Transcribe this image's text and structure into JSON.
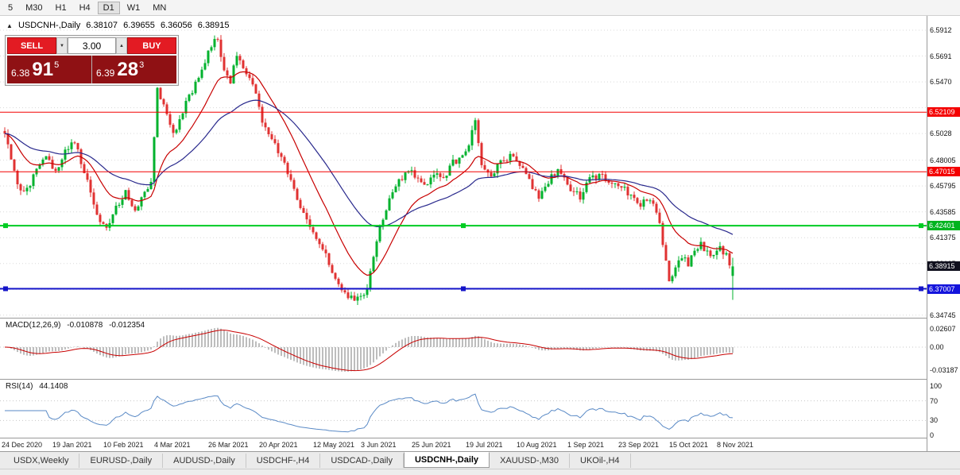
{
  "toolbar": {
    "timeframes": [
      {
        "label": "5",
        "active": false
      },
      {
        "label": "M30",
        "active": false
      },
      {
        "label": "H1",
        "active": false
      },
      {
        "label": "H4",
        "active": false
      },
      {
        "label": "D1",
        "active": true
      },
      {
        "label": "W1",
        "active": false
      },
      {
        "label": "MN",
        "active": false
      }
    ]
  },
  "icons": {
    "collapse": "▲",
    "spinner_down": "▼",
    "spinner_up": "▲"
  },
  "chart": {
    "title": {
      "symbol": "USDCNH-,Daily",
      "open": "6.38107",
      "high": "6.39655",
      "low": "6.36056",
      "close": "6.38915"
    },
    "trade_panel": {
      "sell_label": "SELL",
      "buy_label": "BUY",
      "volume": "3.00",
      "sell_price": {
        "prefix": "6.38",
        "big": "91",
        "sup": "5"
      },
      "buy_price": {
        "prefix": "6.39",
        "big": "28",
        "sup": "3"
      }
    }
  },
  "ui_colors": {
    "buy_sell_button": "#e31b23",
    "price_display_bg": "#8f1114",
    "badge_dark": "#10101e"
  },
  "chart_data": {
    "type": "candlestick",
    "symbol": "USDCNH-,Daily",
    "candle_count": 230,
    "last_candle": {
      "open": 6.38107,
      "high": 6.39655,
      "low": 6.36056,
      "close": 6.38915
    },
    "waypoints": [
      [
        0,
        6.505
      ],
      [
        2,
        6.478
      ],
      [
        4,
        6.46
      ],
      [
        6,
        6.452
      ],
      [
        8,
        6.46
      ],
      [
        10,
        6.47
      ],
      [
        13,
        6.482
      ],
      [
        16,
        6.47
      ],
      [
        19,
        6.49
      ],
      [
        22,
        6.496
      ],
      [
        25,
        6.47
      ],
      [
        28,
        6.442
      ],
      [
        30,
        6.428
      ],
      [
        32,
        6.42
      ],
      [
        35,
        6.44
      ],
      [
        38,
        6.452
      ],
      [
        41,
        6.436
      ],
      [
        44,
        6.452
      ],
      [
        46,
        6.464
      ],
      [
        48,
        6.54
      ],
      [
        50,
        6.526
      ],
      [
        53,
        6.502
      ],
      [
        56,
        6.522
      ],
      [
        60,
        6.546
      ],
      [
        63,
        6.564
      ],
      [
        65,
        6.578
      ],
      [
        67,
        6.584
      ],
      [
        69,
        6.556
      ],
      [
        71,
        6.548
      ],
      [
        73,
        6.57
      ],
      [
        76,
        6.552
      ],
      [
        79,
        6.538
      ],
      [
        81,
        6.515
      ],
      [
        84,
        6.498
      ],
      [
        87,
        6.482
      ],
      [
        90,
        6.464
      ],
      [
        93,
        6.44
      ],
      [
        96,
        6.424
      ],
      [
        98,
        6.412
      ],
      [
        101,
        6.398
      ],
      [
        104,
        6.38
      ],
      [
        107,
        6.366
      ],
      [
        110,
        6.359
      ],
      [
        113,
        6.363
      ],
      [
        115,
        6.382
      ],
      [
        118,
        6.422
      ],
      [
        121,
        6.448
      ],
      [
        124,
        6.462
      ],
      [
        127,
        6.472
      ],
      [
        129,
        6.468
      ],
      [
        132,
        6.458
      ],
      [
        135,
        6.47
      ],
      [
        138,
        6.464
      ],
      [
        141,
        6.478
      ],
      [
        144,
        6.482
      ],
      [
        146,
        6.492
      ],
      [
        148,
        6.516
      ],
      [
        150,
        6.477
      ],
      [
        153,
        6.466
      ],
      [
        156,
        6.478
      ],
      [
        159,
        6.483
      ],
      [
        162,
        6.478
      ],
      [
        165,
        6.462
      ],
      [
        168,
        6.448
      ],
      [
        171,
        6.462
      ],
      [
        174,
        6.473
      ],
      [
        178,
        6.455
      ],
      [
        181,
        6.448
      ],
      [
        184,
        6.463
      ],
      [
        187,
        6.468
      ],
      [
        190,
        6.462
      ],
      [
        194,
        6.458
      ],
      [
        197,
        6.448
      ],
      [
        200,
        6.443
      ],
      [
        203,
        6.448
      ],
      [
        205,
        6.438
      ],
      [
        207,
        6.41
      ],
      [
        209,
        6.378
      ],
      [
        211,
        6.386
      ],
      [
        213,
        6.398
      ],
      [
        215,
        6.392
      ],
      [
        217,
        6.401
      ],
      [
        219,
        6.408
      ],
      [
        221,
        6.4
      ],
      [
        223,
        6.396
      ],
      [
        225,
        6.404
      ],
      [
        227,
        6.398
      ],
      [
        228,
        6.39
      ],
      [
        229,
        6.38915
      ]
    ],
    "price_axis": {
      "ticks": [
        {
          "label": "6.5912",
          "price": 6.5912
        },
        {
          "label": "6.5691",
          "price": 6.5691
        },
        {
          "label": "6.5470",
          "price": 6.547
        },
        {
          "label": "",
          "price": 6.5249
        },
        {
          "label": "6.5028",
          "price": 6.5028
        },
        {
          "label": "6.48005",
          "price": 6.48005
        },
        {
          "label": "6.45795",
          "price": 6.45795
        },
        {
          "label": "6.43585",
          "price": 6.43585
        },
        {
          "label": "6.41375",
          "price": 6.41375
        },
        {
          "label": "6.39165",
          "price": 6.39165
        },
        {
          "label": "",
          "price": 6.36955
        },
        {
          "label": "6.34745",
          "price": 6.34745
        }
      ],
      "badges": [
        {
          "label": "6.52109",
          "price": 6.52109,
          "bg": "#f40000"
        },
        {
          "label": "6.47015",
          "price": 6.47015,
          "bg": "#f40000"
        },
        {
          "label": "6.42401",
          "price": 6.42401,
          "bg": "#00b41e"
        },
        {
          "label": "6.38915",
          "price": 6.38915,
          "bg": "#10101e"
        },
        {
          "label": "6.37007",
          "price": 6.37007,
          "bg": "#1414dc"
        }
      ]
    },
    "levels": [
      {
        "price": 6.52109,
        "color": "#f40000",
        "width": 1,
        "handles": false
      },
      {
        "price": 6.47015,
        "color": "#f40000",
        "width": 1,
        "handles": false
      },
      {
        "price": 6.42401,
        "color": "#00cc22",
        "width": 2,
        "handles": true
      },
      {
        "price": 6.37007,
        "color": "#1414c8",
        "width": 2,
        "handles": true
      }
    ],
    "x_labels": [
      {
        "label": "24 Dec 2020",
        "index": 0
      },
      {
        "label": "19 Jan 2021",
        "index": 16
      },
      {
        "label": "10 Feb 2021",
        "index": 32
      },
      {
        "label": "4 Mar 2021",
        "index": 48
      },
      {
        "label": "26 Mar 2021",
        "index": 65
      },
      {
        "label": "20 Apr 2021",
        "index": 81
      },
      {
        "label": "12 May 2021",
        "index": 98
      },
      {
        "label": "3 Jun 2021",
        "index": 113
      },
      {
        "label": "25 Jun 2021",
        "index": 129
      },
      {
        "label": "19 Jul 2021",
        "index": 146
      },
      {
        "label": "10 Aug 2021",
        "index": 162
      },
      {
        "label": "1 Sep 2021",
        "index": 178
      },
      {
        "label": "23 Sep 2021",
        "index": 194
      },
      {
        "label": "15 Oct 2021",
        "index": 210
      },
      {
        "label": "8 Nov 2021",
        "index": 225
      }
    ],
    "macd": {
      "name": "MACD(12,26,9)",
      "main": "-0.010878",
      "signal": "-0.012354",
      "axis": [
        {
          "label": "0.02607",
          "value": 0.02607
        },
        {
          "label": "0.00",
          "value": 0
        },
        {
          "label": "-0.03187",
          "value": -0.03187
        }
      ]
    },
    "rsi": {
      "name": "RSI(14)",
      "value": "44.1408",
      "axis": [
        {
          "label": "100",
          "value": 100
        },
        {
          "label": "70",
          "value": 70
        },
        {
          "label": "30",
          "value": 30
        },
        {
          "label": "0",
          "value": 0
        }
      ],
      "levels": [
        70,
        30
      ]
    },
    "colors": {
      "up": "#00b22d",
      "down": "#e03232",
      "ma_fast": "#c80000",
      "ma_slow": "#28288c",
      "macd_hist": "#bdbdbd",
      "macd_signal": "#c80000",
      "rsi": "#5a8ac6",
      "grid": "#d9d9d9"
    }
  },
  "tabs": [
    {
      "label": "USDX,Weekly",
      "active": false
    },
    {
      "label": "EURUSD-,Daily",
      "active": false
    },
    {
      "label": "AUDUSD-,Daily",
      "active": false
    },
    {
      "label": "USDCHF-,H4",
      "active": false
    },
    {
      "label": "USDCAD-,Daily",
      "active": false
    },
    {
      "label": "USDCNH-,Daily",
      "active": true
    },
    {
      "label": "XAUUSD-,M30",
      "active": false
    },
    {
      "label": "UKOil-,H4",
      "active": false
    }
  ]
}
